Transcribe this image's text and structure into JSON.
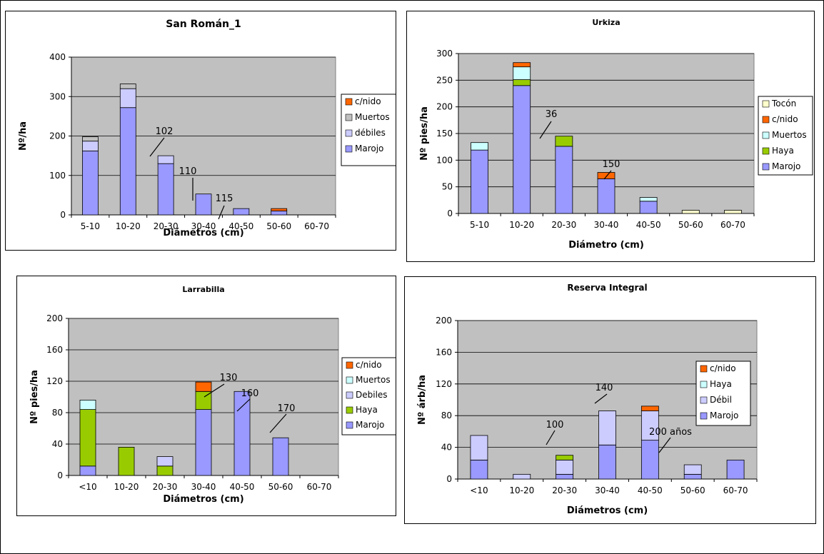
{
  "colors": {
    "Marojo": "#9999ff",
    "debil": "#ccccff",
    "Muertos": "#ccffff",
    "Haya": "#99cc00",
    "c/nido": "#ff6600",
    "Tocon": "#ffffcc",
    "muertos_gray": "#c0c0c0"
  },
  "chart_data": [
    {
      "type": "bar",
      "stacked": true,
      "title": "San Román_1",
      "xlabel": "Diámetros (cm)",
      "ylabel": "Nº/ha",
      "ylim": [
        0,
        400
      ],
      "yticks": [
        0,
        100,
        200,
        300,
        400
      ],
      "categories": [
        "5-10",
        "10-20",
        "20-30",
        "30-40",
        "40-50",
        "50-60",
        "60-70"
      ],
      "series": [
        {
          "name": "Marojo",
          "color": "#9999ff",
          "values": [
            162,
            272,
            130,
            53,
            16,
            10,
            0
          ]
        },
        {
          "name": "débiles",
          "color": "#ccccff",
          "values": [
            25,
            48,
            20,
            0,
            0,
            0,
            0
          ]
        },
        {
          "name": "Muertos",
          "color": "#c0c0c0",
          "values": [
            11,
            12,
            0,
            0,
            0,
            0,
            0
          ]
        },
        {
          "name": "c/nido",
          "color": "#ff6600",
          "values": [
            0,
            0,
            0,
            0,
            0,
            6,
            0
          ]
        }
      ],
      "legend": [
        "c/nido",
        "Muertos",
        "débiles",
        "Marojo"
      ],
      "annotations": [
        {
          "text": "102",
          "category": "20-30"
        },
        {
          "text": "110",
          "category": "30-40"
        },
        {
          "text": "115",
          "category": "40-50"
        }
      ]
    },
    {
      "type": "bar",
      "stacked": true,
      "title": "Urkiza",
      "xlabel": "Diámetro (cm)",
      "ylabel": "Nº pies/ha",
      "ylim": [
        0,
        300
      ],
      "yticks": [
        0,
        50,
        100,
        150,
        200,
        250,
        300
      ],
      "categories": [
        "5-10",
        "10-20",
        "20-30",
        "30-40",
        "40-50",
        "50-60",
        "60-70"
      ],
      "series": [
        {
          "name": "Marojo",
          "color": "#9999ff",
          "values": [
            119,
            240,
            126,
            65,
            23,
            0,
            0
          ]
        },
        {
          "name": "Haya",
          "color": "#99cc00",
          "values": [
            0,
            11,
            19,
            0,
            0,
            0,
            0
          ]
        },
        {
          "name": "Muertos",
          "color": "#ccffff",
          "values": [
            14,
            24,
            0,
            0,
            7,
            0,
            0
          ]
        },
        {
          "name": "c/nido",
          "color": "#ff6600",
          "values": [
            0,
            8,
            0,
            12,
            0,
            0,
            0
          ]
        },
        {
          "name": "Tocón",
          "color": "#ffffcc",
          "values": [
            0,
            0,
            0,
            0,
            0,
            6,
            6
          ]
        }
      ],
      "legend": [
        "Tocón",
        "c/nido",
        "Muertos",
        "Haya",
        "Marojo"
      ],
      "annotations": [
        {
          "text": "36",
          "category": "20-30"
        },
        {
          "text": "150",
          "category": "30-40"
        }
      ]
    },
    {
      "type": "bar",
      "stacked": true,
      "title": "Larrabilla",
      "xlabel": "Diámetros (cm)",
      "ylabel": "Nº pies/ha",
      "ylim": [
        0,
        200
      ],
      "yticks": [
        0,
        40,
        80,
        120,
        160,
        200
      ],
      "categories": [
        "<10",
        "10-20",
        "20-30",
        "30-40",
        "40-50",
        "50-60",
        "60-70"
      ],
      "series": [
        {
          "name": "Marojo",
          "color": "#9999ff",
          "values": [
            12,
            0,
            0,
            84,
            107,
            48,
            0
          ]
        },
        {
          "name": "Haya",
          "color": "#99cc00",
          "values": [
            72,
            36,
            12,
            23,
            0,
            0,
            0
          ]
        },
        {
          "name": "Debiles",
          "color": "#ccccff",
          "values": [
            0,
            0,
            12,
            0,
            0,
            0,
            0
          ]
        },
        {
          "name": "Muertos",
          "color": "#ccffff",
          "values": [
            12,
            0,
            0,
            0,
            0,
            0,
            0
          ]
        },
        {
          "name": "c/nido",
          "color": "#ff6600",
          "values": [
            0,
            0,
            0,
            12,
            0,
            0,
            0
          ]
        }
      ],
      "legend": [
        "c/nido",
        "Muertos",
        "Debiles",
        "Haya",
        "Marojo"
      ],
      "annotations": [
        {
          "text": "130",
          "category": "30-40"
        },
        {
          "text": "160",
          "category": "40-50"
        },
        {
          "text": "170",
          "category": "50-60"
        }
      ]
    },
    {
      "type": "bar",
      "stacked": true,
      "title": "Reserva Integral",
      "xlabel": "Diámetros (cm)",
      "ylabel": "Nº árb/ha",
      "ylim": [
        0,
        200
      ],
      "yticks": [
        0,
        40,
        80,
        120,
        160,
        200
      ],
      "categories": [
        "<10",
        "10-20",
        "20-30",
        "30-40",
        "40-50",
        "50-60",
        "60-70"
      ],
      "series": [
        {
          "name": "Marojo",
          "color": "#9999ff",
          "values": [
            24,
            0,
            6,
            43,
            49,
            6,
            24
          ]
        },
        {
          "name": "Débil",
          "color": "#ccccff",
          "values": [
            31,
            6,
            18,
            43,
            37,
            12,
            0
          ]
        },
        {
          "name": "Haya",
          "color": "#99cc00",
          "values": [
            0,
            0,
            6,
            0,
            0,
            0,
            0
          ]
        },
        {
          "name": "c/nido",
          "color": "#ff6600",
          "values": [
            0,
            0,
            0,
            0,
            6,
            0,
            0
          ]
        }
      ],
      "legend": [
        "c/nido",
        "Haya",
        "Débil",
        "Marojo"
      ],
      "legend_colors": {
        "Haya": "#ccffff"
      },
      "annotations": [
        {
          "text": "100",
          "category": "20-30"
        },
        {
          "text": "140",
          "category": "30-40"
        },
        {
          "text": "200 años",
          "category": "50-60"
        }
      ]
    }
  ]
}
